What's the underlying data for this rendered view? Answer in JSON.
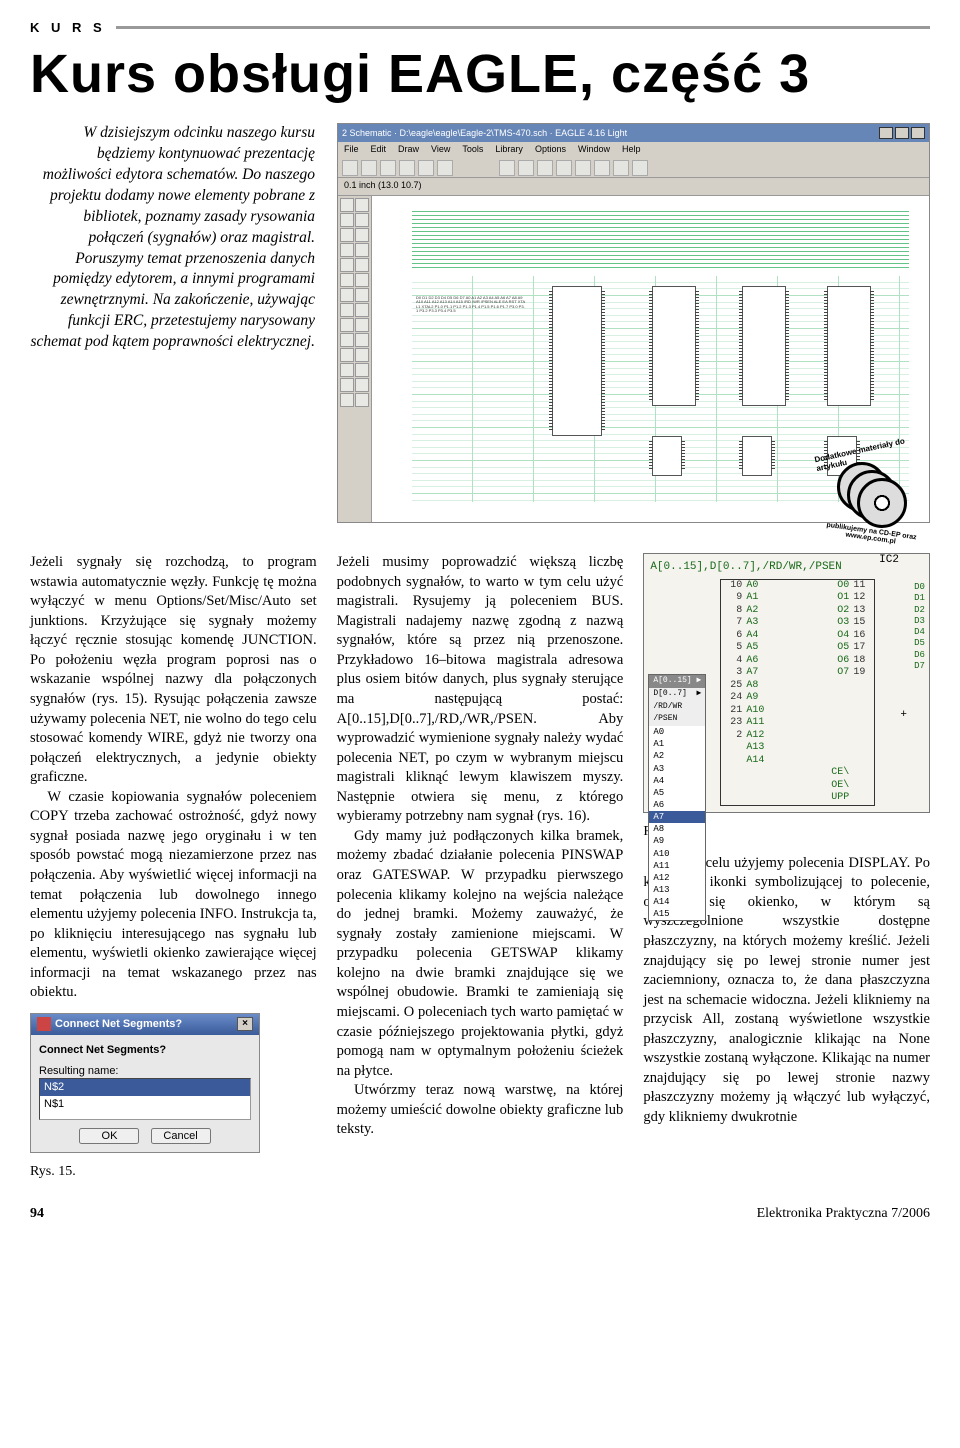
{
  "header": {
    "kicker": "K U R S",
    "title": "Kurs obsługi EAGLE, część 3"
  },
  "lead": "W dzisiejszym odcinku naszego kursu będziemy kontynuować prezentację możliwości edytora schematów. Do naszego projektu dodamy nowe elementy pobrane z bibliotek, poznamy zasady rysowania połączeń (sygnałów) oraz magistral. Poruszymy temat przenoszenia danych pomiędzy edytorem, a innymi programami zewnętrznymi. Na zakończenie, używając funkcji ERC, przetestujemy narysowany schemat pod kątem poprawności elektrycznej.",
  "col1": {
    "p1": "Jeżeli sygnały się rozchodzą, to program wstawia automatycznie węzły. Funkcję tę można wyłączyć w menu Options/Set/Misc/Auto set junktions. Krzyżujące się sygnały możemy łączyć ręcznie stosując komendę JUNCTION. Po położeniu węzła program poprosi nas o wskazanie wspólnej nazwy dla połączonych sygnałów (rys. 15). Rysując połączenia zawsze używamy polecenia NET, nie wolno do tego celu stosować komendy WIRE, gdyż nie tworzy ona połączeń elektrycznych, a jedynie obiekty graficzne.",
    "p2": "W czasie kopiowania sygnałów poleceniem COPY trzeba zachować ostrożność, gdyż nowy sygnał posiada nazwę jego oryginału i w ten sposób powstać mogą niezamierzone przez nas połączenia. Aby wyświetlić więcej informacji na temat połączenia lub dowolnego innego elementu użyjemy polecenia INFO. Instrukcja ta, po kliknięciu interesującego nas sygnału lub elementu, wyświetli okienko zawierające więcej informacji na temat wskazanego przez nas obiektu."
  },
  "dialog": {
    "title": "Connect Net Segments?",
    "prompt": "Connect Net Segments?",
    "result_label": "Resulting name:",
    "opt_sel": "N$2",
    "opt2": "N$1",
    "ok": "OK",
    "cancel": "Cancel"
  },
  "fig15_caption": "Rys. 15.",
  "col2": {
    "p1": "Jeżeli musimy poprowadzić większą liczbę podobnych sygnałów, to warto w tym celu użyć magistrali. Rysujemy ją poleceniem BUS. Magistrali nadajemy nazwę zgodną z nazwą sygnałów, które są przez nią przenoszone. Przykładowo 16–bitowa magistrala adresowa plus osiem bitów danych, plus sygnały sterujące ma następującą postać: A[0..15],D[0..7],/RD,/WR,/PSEN. Aby wyprowadzić wymienione sygnały należy wydać polecenia NET, po czym w wybranym miejscu magistrali kliknąć lewym klawiszem myszy. Następnie otwiera się menu, z którego wybieramy potrzebny nam sygnał (rys. 16).",
    "p2": "Gdy mamy już podłączonych kilka bramek, możemy zbadać działanie polecenia PINSWAP oraz GATESWAP. W przypadku pierwszego polecenia klikamy kolejno na wejścia należące do jednej bramki. Możemy zauważyć, że sygnały zostały zamienione miejscami. W przypadku polecenia GETSWAP klikamy kolejno na dwie bramki znajdujące się we wspólnej obudowie. Bramki te zamieniają się miejscami. O poleceniach tych warto pamiętać w czasie późniejszego projektowania płytki, gdyż pomogą nam w optymalnym położeniu ścieżek na płytce.",
    "p3": "Utwórzmy teraz nową warstwę, na której możemy umieścić dowolne obiekty graficzne lub teksty."
  },
  "screenshot": {
    "title": "2 Schematic · D:\\eagle\\eagle\\Eagle-2\\TMS-470.sch · EAGLE 4.16 Light",
    "menus": [
      "File",
      "Edit",
      "Draw",
      "View",
      "Tools",
      "Library",
      "Options",
      "Window",
      "Help"
    ],
    "coord": "0.1 inch (13.0 10.7)",
    "net_labels": "D0 D1 D2 D3 D4 D5 D6 D7 A0 A1 A2 A3 A4 A5 A6 A7 A8 A9 A10 A11 A12 A13 A14 A15 /RD /WR /PSEN ALE EA RST XTAL1 XTAL2 P1.0 P1.1 P1.2 P1.3 P1.4 P1.5 P1.6 P1.7 P3.0 P3.1 P3.2 P3.3 P3.4 P3.5",
    "cd_top": "Dodatkowe materiały do artykułu",
    "cd_bottom": "publikujemy na CD-EP oraz www.ep.com.pl"
  },
  "eagle_panel": {
    "bus": "A[0..15],D[0..7],/RD/WR,/PSEN",
    "ic": "IC2",
    "rows_top": [
      {
        "l": "10",
        "ll": "A0",
        "rl": "O0",
        "r": "11"
      },
      {
        "l": "9",
        "ll": "A1",
        "rl": "O1",
        "r": "12"
      },
      {
        "l": "8",
        "ll": "A2",
        "rl": "O2",
        "r": "13"
      },
      {
        "l": "7",
        "ll": "A3",
        "rl": "O3",
        "r": "15"
      },
      {
        "l": "6",
        "ll": "A4",
        "rl": "O4",
        "r": "16"
      },
      {
        "l": "5",
        "ll": "A5",
        "rl": "O5",
        "r": "17"
      },
      {
        "l": "4",
        "ll": "A6",
        "rl": "O6",
        "r": "18"
      },
      {
        "l": "3",
        "ll": "A7",
        "rl": "O7",
        "r": "19"
      }
    ],
    "rows_bottom": [
      {
        "l": "25",
        "ll": "A8",
        "rl": "",
        "r": ""
      },
      {
        "l": "24",
        "ll": "A9",
        "rl": "",
        "r": ""
      },
      {
        "l": "21",
        "ll": "A10",
        "rl": "",
        "r": ""
      },
      {
        "l": "23",
        "ll": "A11",
        "rl": "",
        "r": ""
      },
      {
        "l": "2",
        "ll": "A12",
        "rl": "",
        "r": ""
      },
      {
        "l": "",
        "ll": "A13",
        "rl": "",
        "r": ""
      },
      {
        "l": "",
        "ll": "A14",
        "rl": "",
        "r": ""
      },
      {
        "l": "",
        "ll": "",
        "rl": "CE\\",
        "r": ""
      },
      {
        "l": "",
        "ll": "",
        "rl": "OE\\",
        "r": ""
      },
      {
        "l": "",
        "ll": "",
        "rl": "UPP",
        "r": ""
      }
    ],
    "ext_r": [
      "D0",
      "D1",
      "D2",
      "D3",
      "D4",
      "D5",
      "D6",
      "D7"
    ],
    "menu": {
      "top_l": "A[0..15]",
      "top_r": "▶",
      "head_l": "D[0..7]",
      "head_r": "▶",
      "items": [
        "A0",
        "A1",
        "A2",
        "A3",
        "A4",
        "A5",
        "A6",
        "A7",
        "A8",
        "A9",
        "A10",
        "A11",
        "A12",
        "A13",
        "A14",
        "A15"
      ],
      "selected_index": 7,
      "pre_items": [
        "/RD/WR",
        "/PSEN"
      ]
    }
  },
  "fig16_caption": "Rys. 16.",
  "col3": {
    "p1": "W tym celu użyjemy polecenia DISPLAY. Po kliknięciu ikonki symbolizującej to polecenie, otwiera się okienko, w którym są wyszczególnione wszystkie dostępne płaszczyzny, na których możemy kreślić. Jeżeli znajdujący się po lewej stronie numer jest zaciemniony, oznacza to, że dana płaszczyzna jest na schemacie widoczna. Jeżeli klikniemy na przycisk All, zostaną wyświetlone wszystkie płaszczyzny, analogicznie klikając na None wszystkie zostaną wyłączone. Klikając na numer znajdujący się po lewej stronie nazwy płaszczyzny możemy ją włączyć lub wyłączyć, gdy klikniemy dwukrotnie"
  },
  "footer": {
    "page": "94",
    "pub": "Elektronika Praktyczna 7/2006"
  }
}
